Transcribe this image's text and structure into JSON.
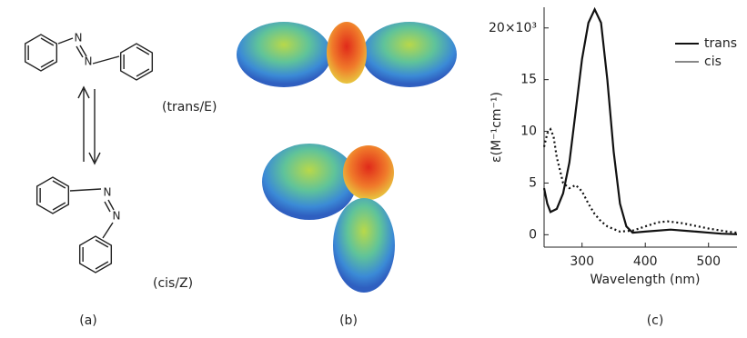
{
  "structures": {
    "atom": "N",
    "trans": "(trans/E)",
    "cis": "(cis/Z)"
  },
  "panel_labels": [
    "(a)",
    "(b)",
    "(c)"
  ],
  "chart_data": {
    "type": "line",
    "x_label": "Wavelength (nm)",
    "y_label": "ε(M⁻¹cm⁻¹)",
    "xlim": [
      240,
      545
    ],
    "xticks": [
      300,
      400,
      500
    ],
    "ylim": [
      -1.2,
      22
    ],
    "yticks": [
      0,
      5,
      10,
      15,
      {
        "value": 20,
        "label": "20×10³"
      }
    ],
    "legend": "upper right",
    "series": [
      {
        "name": "trans",
        "color": "#111111",
        "line_style": "solid",
        "x": [
          240,
          245,
          250,
          260,
          270,
          280,
          290,
          300,
          310,
          320,
          330,
          340,
          350,
          360,
          370,
          380,
          400,
          440,
          480,
          520,
          545
        ],
        "values": [
          4.5,
          3,
          2.2,
          2.5,
          4,
          7,
          12,
          17,
          20.5,
          21.8,
          20.5,
          15,
          8,
          3,
          0.8,
          0.2,
          0.3,
          0.5,
          0.3,
          0.1,
          0.05
        ]
      },
      {
        "name": "cis",
        "color": "#111111",
        "line_style": "dotted",
        "x": [
          240,
          245,
          250,
          255,
          260,
          270,
          280,
          290,
          300,
          310,
          320,
          330,
          340,
          360,
          380,
          400,
          420,
          435,
          460,
          500,
          530,
          545
        ],
        "values": [
          8.5,
          9.8,
          10.2,
          9.5,
          7.5,
          5,
          4.5,
          4.8,
          4.2,
          3,
          2,
          1.3,
          0.8,
          0.3,
          0.4,
          0.8,
          1.2,
          1.3,
          1.1,
          0.6,
          0.3,
          0.2
        ]
      }
    ]
  }
}
